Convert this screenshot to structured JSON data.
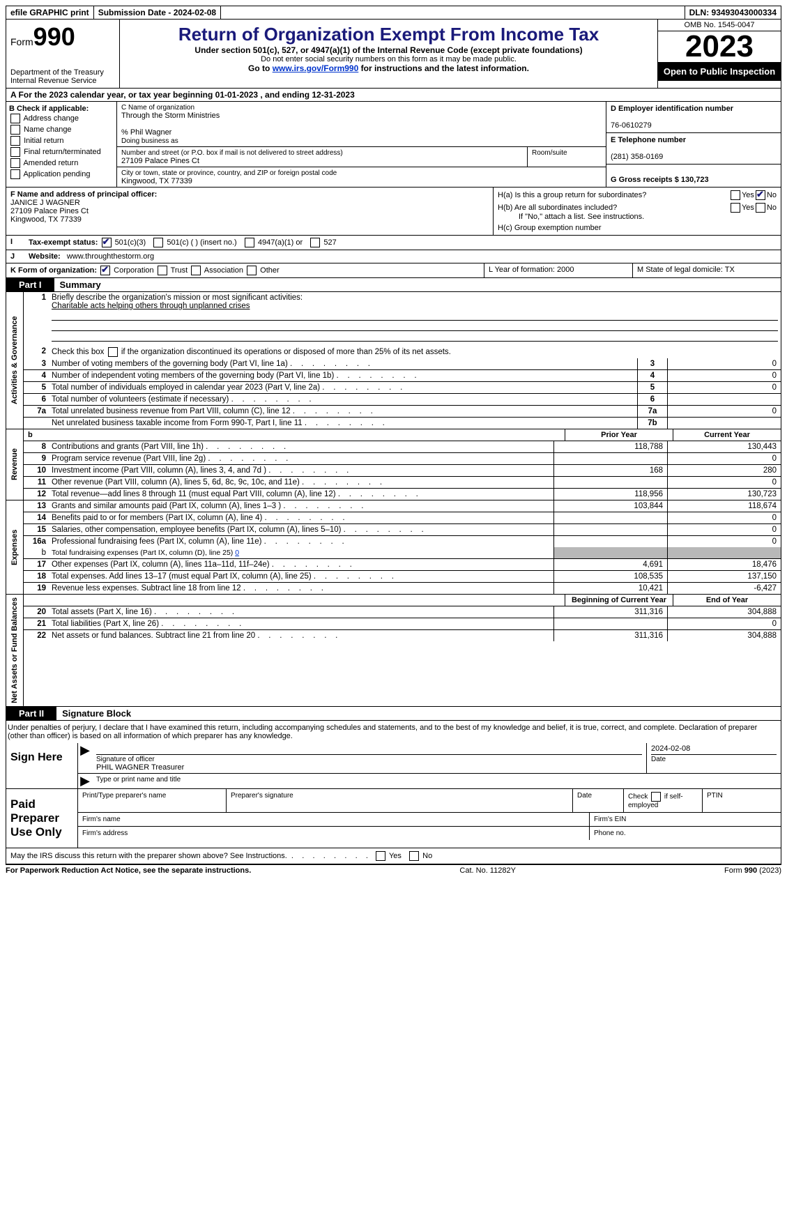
{
  "topbar": {
    "efile": "efile GRAPHIC print",
    "submission_label": "Submission Date - 2024-02-08",
    "dln_label": "DLN: 93493043000334"
  },
  "header": {
    "form_word": "Form",
    "form_number": "990",
    "dept": "Department of the Treasury Internal Revenue Service",
    "title": "Return of Organization Exempt From Income Tax",
    "subtitle": "Under section 501(c), 527, or 4947(a)(1) of the Internal Revenue Code (except private foundations)",
    "ssn_note": "Do not enter social security numbers on this form as it may be made public.",
    "goto_prefix": "Go to ",
    "goto_link": "www.irs.gov/Form990",
    "goto_suffix": " for instructions and the latest information.",
    "omb": "OMB No. 1545-0047",
    "year": "2023",
    "open_public": "Open to Public Inspection"
  },
  "row_a": {
    "text": "A For the 2023 calendar year, or tax year beginning 01-01-2023    , and ending 12-31-2023"
  },
  "section_b": {
    "label": "B Check if applicable:",
    "items": [
      "Address change",
      "Name change",
      "Initial return",
      "Final return/terminated",
      "Amended return",
      "Application pending"
    ]
  },
  "section_c": {
    "name_label": "C Name of organization",
    "name": "Through the Storm Ministries",
    "care_of": "% Phil Wagner",
    "dba_label": "Doing business as",
    "street_label": "Number and street (or P.O. box if mail is not delivered to street address)",
    "room_label": "Room/suite",
    "street": "27109 Palace Pines Ct",
    "city_label": "City or town, state or province, country, and ZIP or foreign postal code",
    "city": "Kingwood, TX   77339"
  },
  "section_d": {
    "ein_label": "D Employer identification number",
    "ein": "76-0610279",
    "phone_label": "E Telephone number",
    "phone": "(281) 358-0169",
    "gross_label": "G Gross receipts $ 130,723"
  },
  "section_f": {
    "label": "F  Name and address of principal officer:",
    "name": "JANICE J WAGNER",
    "street": "27109 Palace Pines Ct",
    "city": "Kingwood, TX  77339"
  },
  "section_h": {
    "ha": "H(a)  Is this a group return for subordinates?",
    "hb": "H(b)  Are all subordinates included?",
    "hb_note": "If \"No,\" attach a list. See instructions.",
    "hc": "H(c)  Group exemption number ",
    "yes": "Yes",
    "no": "No"
  },
  "row_i": {
    "label": "Tax-exempt status:",
    "opt1": "501(c)(3)",
    "opt2": "501(c) (   ) (insert no.)",
    "opt3": "4947(a)(1) or",
    "opt4": "527"
  },
  "row_j": {
    "label": "Website: ",
    "value": "www.throughthestorm.org"
  },
  "row_k": {
    "label": "K Form of organization:",
    "opts": [
      "Corporation",
      "Trust",
      "Association",
      "Other"
    ],
    "l_label": "L Year of formation: 2000",
    "m_label": "M State of legal domicile: TX"
  },
  "part1": {
    "tab": "Part I",
    "title": "Summary",
    "vert_labels": [
      "Activities & Governance",
      "Revenue",
      "Expenses",
      "Net Assets or Fund Balances"
    ],
    "line1_label": "Briefly describe the organization's mission or most significant activities:",
    "line1_text": "Charitable acts helping others through unplanned crises",
    "line2": "Check this box      if the organization discontinued its operations or disposed of more than 25% of its net assets.",
    "gov_rows": [
      {
        "num": "3",
        "desc": "Number of voting members of the governing body (Part VI, line 1a)",
        "box": "3",
        "val": "0"
      },
      {
        "num": "4",
        "desc": "Number of independent voting members of the governing body (Part VI, line 1b)",
        "box": "4",
        "val": "0"
      },
      {
        "num": "5",
        "desc": "Total number of individuals employed in calendar year 2023 (Part V, line 2a)",
        "box": "5",
        "val": "0"
      },
      {
        "num": "6",
        "desc": "Total number of volunteers (estimate if necessary)",
        "box": "6",
        "val": ""
      },
      {
        "num": "7a",
        "desc": "Total unrelated business revenue from Part VIII, column (C), line 12",
        "box": "7a",
        "val": "0"
      },
      {
        "num": "",
        "desc": "Net unrelated business taxable income from Form 990-T, Part I, line 11",
        "box": "7b",
        "val": ""
      }
    ],
    "prior_header": "Prior Year",
    "current_header": "Current Year",
    "rev_rows": [
      {
        "num": "8",
        "desc": "Contributions and grants (Part VIII, line 1h)",
        "prior": "118,788",
        "curr": "130,443"
      },
      {
        "num": "9",
        "desc": "Program service revenue (Part VIII, line 2g)",
        "prior": "",
        "curr": "0"
      },
      {
        "num": "10",
        "desc": "Investment income (Part VIII, column (A), lines 3, 4, and 7d )",
        "prior": "168",
        "curr": "280"
      },
      {
        "num": "11",
        "desc": "Other revenue (Part VIII, column (A), lines 5, 6d, 8c, 9c, 10c, and 11e)",
        "prior": "",
        "curr": "0"
      },
      {
        "num": "12",
        "desc": "Total revenue—add lines 8 through 11 (must equal Part VIII, column (A), line 12)",
        "prior": "118,956",
        "curr": "130,723"
      }
    ],
    "exp_rows": [
      {
        "num": "13",
        "desc": "Grants and similar amounts paid (Part IX, column (A), lines 1–3 )",
        "prior": "103,844",
        "curr": "118,674"
      },
      {
        "num": "14",
        "desc": "Benefits paid to or for members (Part IX, column (A), line 4)",
        "prior": "",
        "curr": "0"
      },
      {
        "num": "15",
        "desc": "Salaries, other compensation, employee benefits (Part IX, column (A), lines 5–10)",
        "prior": "",
        "curr": "0"
      },
      {
        "num": "16a",
        "desc": "Professional fundraising fees (Part IX, column (A), line 11e)",
        "prior": "",
        "curr": "0"
      }
    ],
    "line16b_label": "Total fundraising expenses (Part IX, column (D), line 25) ",
    "line16b_val": "0",
    "exp_rows2": [
      {
        "num": "17",
        "desc": "Other expenses (Part IX, column (A), lines 11a–11d, 11f–24e)",
        "prior": "4,691",
        "curr": "18,476"
      },
      {
        "num": "18",
        "desc": "Total expenses. Add lines 13–17 (must equal Part IX, column (A), line 25)",
        "prior": "108,535",
        "curr": "137,150"
      },
      {
        "num": "19",
        "desc": "Revenue less expenses. Subtract line 18 from line 12",
        "prior": "10,421",
        "curr": "-6,427"
      }
    ],
    "na_header_prior": "Beginning of Current Year",
    "na_header_curr": "End of Year",
    "na_rows": [
      {
        "num": "20",
        "desc": "Total assets (Part X, line 16)",
        "prior": "311,316",
        "curr": "304,888"
      },
      {
        "num": "21",
        "desc": "Total liabilities (Part X, line 26)",
        "prior": "",
        "curr": "0"
      },
      {
        "num": "22",
        "desc": "Net assets or fund balances. Subtract line 21 from line 20",
        "prior": "311,316",
        "curr": "304,888"
      }
    ]
  },
  "part2": {
    "tab": "Part II",
    "title": "Signature Block",
    "penalty": "Under penalties of perjury, I declare that I have examined this return, including accompanying schedules and statements, and to the best of my knowledge and belief, it is true, correct, and complete. Declaration of preparer (other than officer) is based on all information of which preparer has any knowledge."
  },
  "sign": {
    "here": "Sign Here",
    "sig_label": "Signature of officer",
    "date_label": "Date",
    "date": "2024-02-08",
    "name_title": "PHIL WAGNER  Treasurer",
    "type_label": "Type or print name and title"
  },
  "preparer": {
    "label": "Paid Preparer Use Only",
    "print_name": "Print/Type preparer's name",
    "sig": "Preparer's signature",
    "date": "Date",
    "self_emp": "Check       if self-employed",
    "ptin": "PTIN",
    "firm_name": "Firm's name ",
    "firm_ein": "Firm's EIN ",
    "firm_addr": "Firm's address ",
    "phone": "Phone no."
  },
  "discuss": {
    "text": "May the IRS discuss this return with the preparer shown above? See Instructions.",
    "yes": "Yes",
    "no": "No"
  },
  "footer": {
    "paperwork": "For Paperwork Reduction Act Notice, see the separate instructions.",
    "cat": "Cat. No. 11282Y",
    "form": "Form 990 (2023)"
  }
}
